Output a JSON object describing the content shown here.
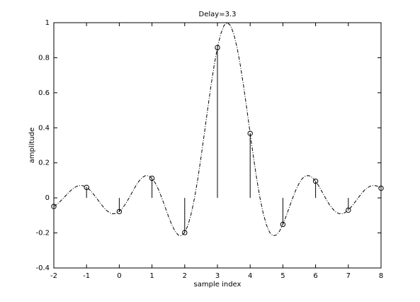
{
  "chart_data": {
    "type": "stem",
    "title": "Delay=3.3",
    "x_label": "sample index",
    "y_label": "amplitude",
    "xlim": [
      -2,
      8
    ],
    "ylim": [
      -0.4,
      1
    ],
    "xticks": [
      -2,
      -1,
      0,
      1,
      2,
      3,
      4,
      5,
      6,
      7,
      8
    ],
    "yticks": [
      -0.4,
      -0.2,
      0,
      0.2,
      0.4,
      0.6,
      0.8,
      1
    ],
    "series": [
      {
        "style": "stem",
        "color": "#000000",
        "x": [
          -2,
          -1,
          0,
          1,
          2,
          3,
          4,
          5,
          6,
          7,
          8
        ],
        "values": [
          -0.049,
          0.06,
          -0.078,
          0.112,
          -0.198,
          0.858,
          0.368,
          -0.151,
          0.095,
          -0.07,
          0.055
        ]
      },
      {
        "style": "dashdot",
        "color": "#000000",
        "x": [
          -2,
          -1.9,
          -1.8,
          -1.7,
          -1.6,
          -1.5,
          -1.4,
          -1.3,
          -1.2,
          -1.1,
          -1,
          -0.9,
          -0.8,
          -0.7,
          -0.6,
          -0.5,
          -0.4,
          -0.3,
          -0.2,
          -0.1,
          0,
          0.1,
          0.2,
          0.3,
          0.4,
          0.5,
          0.6,
          0.7,
          0.8,
          0.9,
          1,
          1.1,
          1.2,
          1.3,
          1.4,
          1.5,
          1.6,
          1.7,
          1.8,
          1.9,
          2,
          2.1,
          2.2,
          2.3,
          2.4,
          2.5,
          2.6,
          2.7,
          2.8,
          2.9,
          3,
          3.1,
          3.2,
          3.3,
          3.4,
          3.5,
          3.6,
          3.7,
          3.8,
          3.9,
          4,
          4.1,
          4.2,
          4.3,
          4.4,
          4.5,
          4.6,
          4.7,
          4.8,
          4.9,
          5,
          5.1,
          5.2,
          5.3,
          5.4,
          5.5,
          5.6,
          5.7,
          5.8,
          5.9,
          6,
          6.1,
          6.2,
          6.3,
          6.4,
          6.5,
          6.6,
          6.7,
          6.8,
          6.9,
          7,
          7.1,
          7.2,
          7.3,
          7.4,
          7.5,
          7.6,
          7.7,
          7.8,
          7.9,
          8
        ],
        "values": [
          -0.049,
          -0.036,
          -0.019,
          0,
          0.02,
          0.039,
          0.055,
          0.066,
          0.071,
          0.069,
          0.06,
          0.045,
          0.024,
          0,
          -0.025,
          -0.049,
          -0.07,
          -0.084,
          -0.091,
          -0.089,
          -0.078,
          -0.058,
          -0.032,
          0,
          0.034,
          0.067,
          0.095,
          0.116,
          0.127,
          0.126,
          0.112,
          0.085,
          0.047,
          0,
          -0.052,
          -0.104,
          -0.151,
          -0.189,
          -0.212,
          -0.216,
          -0.198,
          -0.156,
          -0.089,
          0,
          0.109,
          0.234,
          0.368,
          0.505,
          0.637,
          0.757,
          0.858,
          0.935,
          0.984,
          1,
          0.984,
          0.935,
          0.858,
          0.757,
          0.637,
          0.505,
          0.368,
          0.234,
          0.109,
          0,
          -0.089,
          -0.156,
          -0.198,
          -0.216,
          -0.212,
          -0.189,
          -0.151,
          -0.104,
          -0.052,
          0,
          0.047,
          0.085,
          0.112,
          0.126,
          0.127,
          0.116,
          0.095,
          0.067,
          0.034,
          0,
          -0.032,
          -0.058,
          -0.078,
          -0.089,
          -0.091,
          -0.084,
          -0.07,
          -0.049,
          -0.025,
          0,
          0.024,
          0.045,
          0.06,
          0.069,
          0.071,
          0.066,
          0.055
        ]
      }
    ]
  }
}
